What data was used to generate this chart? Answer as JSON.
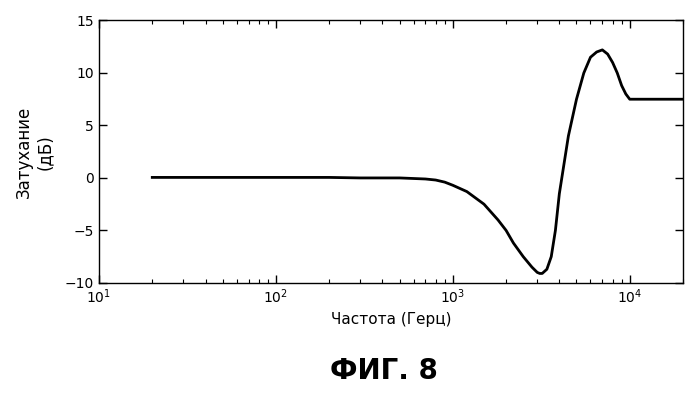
{
  "title": "ФИГ. 8",
  "ylabel_line1": "Затухание",
  "ylabel_line2": "(дБ)",
  "xlabel": "Частота (Герц)",
  "xlim": [
    10,
    20000
  ],
  "ylim": [
    -10,
    15
  ],
  "yticks": [
    -10,
    -5,
    0,
    5,
    10,
    15
  ],
  "xticks": [
    10,
    100,
    1000,
    10000
  ],
  "xtick_labels": [
    "$10^1$",
    "$10^2$",
    "$10^3$",
    "$10^4$"
  ],
  "line_color": "#000000",
  "line_width": 2.0,
  "background_color": "#ffffff",
  "curve_points": {
    "freq": [
      20,
      30,
      50,
      80,
      100,
      200,
      300,
      500,
      700,
      800,
      900,
      1000,
      1200,
      1500,
      1800,
      2000,
      2200,
      2500,
      2800,
      3000,
      3100,
      3200,
      3400,
      3600,
      3800,
      4000,
      4500,
      5000,
      5500,
      6000,
      6500,
      7000,
      7500,
      8000,
      8500,
      9000,
      9500,
      10000,
      12000,
      15000,
      20000
    ],
    "atten": [
      0.05,
      0.05,
      0.05,
      0.05,
      0.05,
      0.05,
      0.0,
      0.0,
      -0.1,
      -0.2,
      -0.4,
      -0.7,
      -1.3,
      -2.5,
      -4.0,
      -5.0,
      -6.2,
      -7.5,
      -8.5,
      -9.0,
      -9.1,
      -9.1,
      -8.7,
      -7.5,
      -5.0,
      -1.5,
      4.0,
      7.5,
      10.0,
      11.5,
      12.0,
      12.2,
      11.8,
      11.0,
      10.0,
      8.8,
      8.0,
      7.5,
      7.5,
      7.5,
      7.5
    ]
  }
}
